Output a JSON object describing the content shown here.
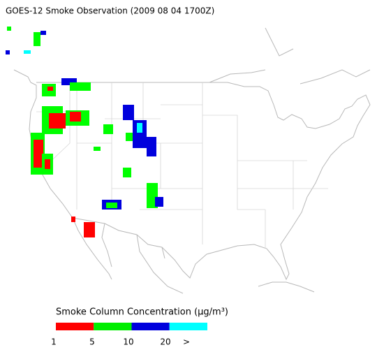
{
  "title": "GOES-12 Smoke Observation (2009 08 04  1700Z)",
  "legend": {
    "title": "Smoke Column Concentration (μg/m³)",
    "colors": [
      "#ff0000",
      "#00ee00",
      "#0000dd",
      "#00ffff"
    ],
    "labels": [
      "1",
      "5",
      "10",
      "20",
      ">"
    ]
  }
}
